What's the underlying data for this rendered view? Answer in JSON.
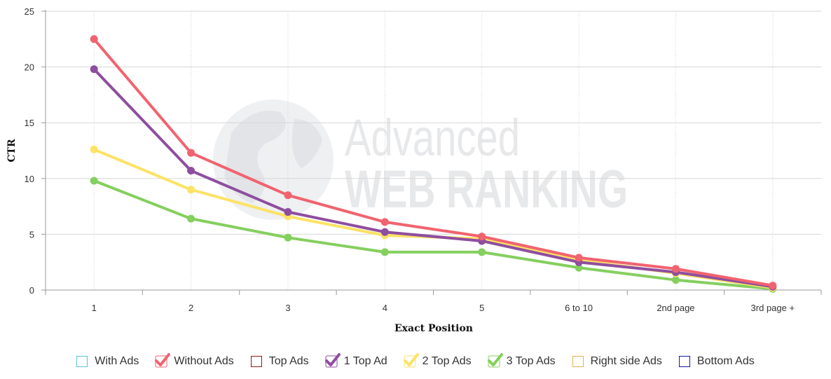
{
  "chart_data": {
    "type": "line",
    "xlabel": "Exact Position",
    "ylabel": "CTR",
    "ylim": [
      0,
      25
    ],
    "yticks": [
      "0",
      "5",
      "10",
      "15",
      "20",
      "25"
    ],
    "categories": [
      "1",
      "2",
      "3",
      "4",
      "5",
      "6 to 10",
      "2nd page",
      "3rd page +"
    ],
    "grid": true,
    "legend_placement": "bottom",
    "series": [
      {
        "name": "Without Ads",
        "color": "#f1636f",
        "values": [
          22.5,
          12.3,
          8.5,
          6.1,
          4.8,
          2.9,
          1.9,
          0.4
        ]
      },
      {
        "name": "1 Top Ad",
        "color": "#8e4e9f",
        "values": [
          19.8,
          10.7,
          7.0,
          5.2,
          4.4,
          2.5,
          1.6,
          0.3
        ]
      },
      {
        "name": "2 Top Ads",
        "color": "#fde265",
        "values": [
          12.6,
          9.0,
          6.6,
          4.9,
          4.6,
          2.7,
          1.5,
          0.2
        ]
      },
      {
        "name": "3 Top Ads",
        "color": "#84cf5e",
        "values": [
          9.8,
          6.4,
          4.7,
          3.4,
          3.4,
          2.0,
          0.9,
          0.1
        ]
      }
    ],
    "legend": [
      {
        "name": "With Ads",
        "color": "#5bc0de",
        "checked": false
      },
      {
        "name": "Without Ads",
        "color": "#f1636f",
        "checked": true
      },
      {
        "name": "Top Ads",
        "color": "#8b1a1a",
        "checked": false
      },
      {
        "name": "1 Top Ad",
        "color": "#8e4e9f",
        "checked": true
      },
      {
        "name": "2 Top Ads",
        "color": "#fde265",
        "checked": true
      },
      {
        "name": "3 Top Ads",
        "color": "#84cf5e",
        "checked": true
      },
      {
        "name": "Right side Ads",
        "color": "#e8b04a",
        "checked": false
      },
      {
        "name": "Bottom Ads",
        "color": "#1a1aa0",
        "checked": false
      }
    ]
  },
  "watermark": {
    "line1": "Advanced",
    "line2": "WEB RANKING"
  }
}
